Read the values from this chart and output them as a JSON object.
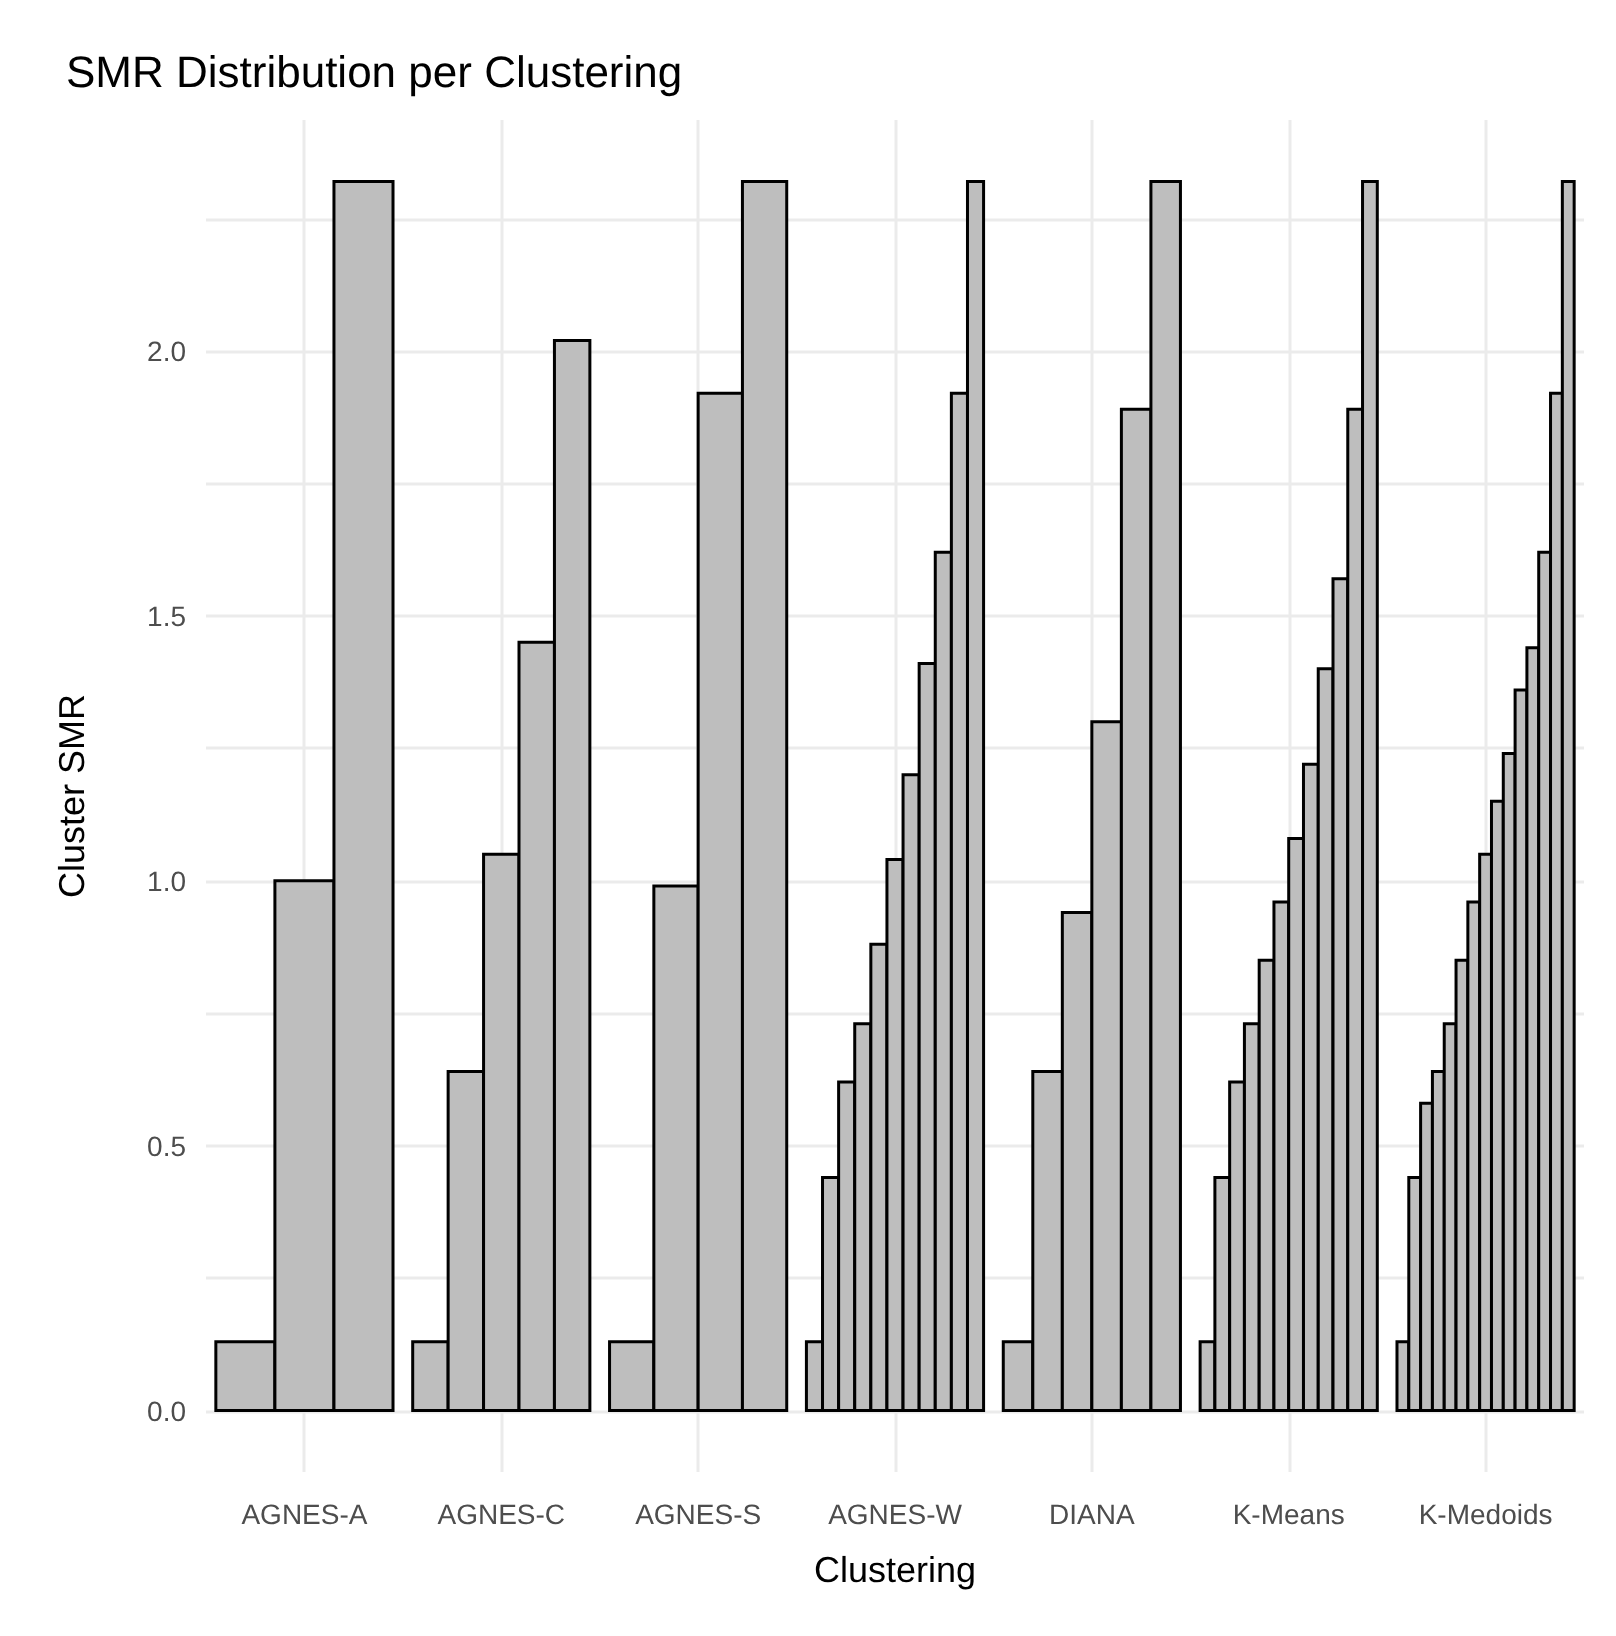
{
  "chart_data": {
    "type": "bar",
    "title": "SMR Distribution per Clustering",
    "xlabel": "Clustering",
    "ylabel": "Cluster SMR",
    "categories": [
      "AGNES-A",
      "AGNES-C",
      "AGNES-S",
      "AGNES-W",
      "DIANA",
      "K-Means",
      "K-Medoids"
    ],
    "series": [
      {
        "color": "#bebebe",
        "values": [
          0.13,
          0.13,
          0.13,
          0.13,
          0.13,
          0.13,
          0.13
        ]
      },
      {
        "color": "#bebebe",
        "values": [
          1.0,
          0.64,
          0.99,
          0.44,
          0.64,
          0.44,
          0.44
        ]
      },
      {
        "color": "#bebebe",
        "values": [
          2.32,
          1.05,
          1.92,
          0.62,
          0.94,
          0.62,
          0.58
        ]
      },
      {
        "color": "#bebebe",
        "values": [
          null,
          1.45,
          2.32,
          0.73,
          1.3,
          0.73,
          0.64
        ]
      },
      {
        "color": "#bebebe",
        "values": [
          null,
          2.02,
          null,
          0.88,
          1.89,
          0.85,
          0.73
        ]
      },
      {
        "color": "#bebebe",
        "values": [
          null,
          null,
          null,
          1.04,
          2.32,
          0.96,
          0.85
        ]
      },
      {
        "color": "#bebebe",
        "values": [
          null,
          null,
          null,
          1.2,
          null,
          1.08,
          0.96
        ]
      },
      {
        "color": "#bebebe",
        "values": [
          null,
          null,
          null,
          1.41,
          null,
          1.22,
          1.05
        ]
      },
      {
        "color": "#bebebe",
        "values": [
          null,
          null,
          null,
          1.62,
          null,
          1.4,
          1.15
        ]
      },
      {
        "color": "#bebebe",
        "values": [
          null,
          null,
          null,
          1.92,
          null,
          1.57,
          1.24
        ]
      },
      {
        "color": "#bebebe",
        "values": [
          null,
          null,
          null,
          2.32,
          null,
          1.89,
          1.36
        ]
      },
      {
        "color": "#bebebe",
        "values": [
          null,
          null,
          null,
          null,
          null,
          2.32,
          1.44
        ]
      },
      {
        "color": "#bebebe",
        "values": [
          null,
          null,
          null,
          null,
          null,
          null,
          1.62
        ]
      },
      {
        "color": "#bebebe",
        "values": [
          null,
          null,
          null,
          null,
          null,
          null,
          1.92
        ]
      },
      {
        "color": "#bebebe",
        "values": [
          null,
          null,
          null,
          null,
          null,
          null,
          2.32
        ]
      }
    ],
    "ylim": [
      -0.116,
      2.436
    ],
    "yticks": [
      {
        "value": 0,
        "label": "0.0"
      },
      {
        "value": 0.25,
        "label": null
      },
      {
        "value": 0.5,
        "label": "0.5"
      },
      {
        "value": 0.75,
        "label": null
      },
      {
        "value": 1,
        "label": "1.0"
      },
      {
        "value": 1.25,
        "label": null
      },
      {
        "value": 1.5,
        "label": "1.5"
      },
      {
        "value": 1.75,
        "label": null
      },
      {
        "value": 2,
        "label": "2.0"
      },
      {
        "value": 2.25,
        "label": null
      }
    ],
    "grid": true
  }
}
